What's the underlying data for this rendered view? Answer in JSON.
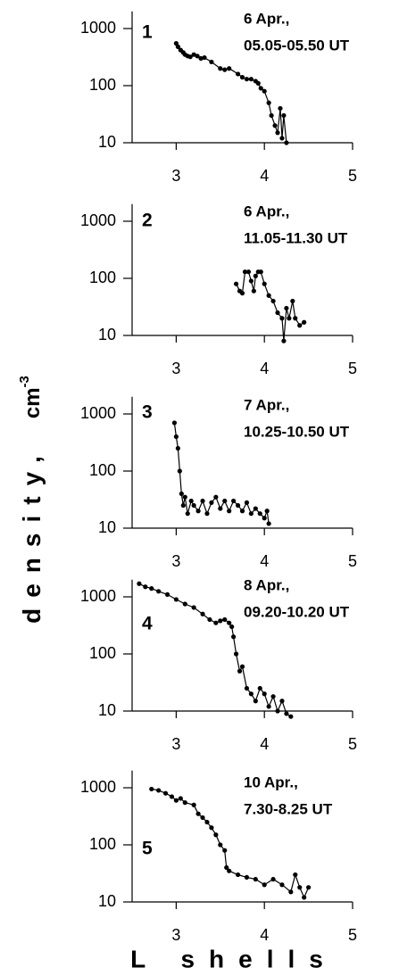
{
  "xlabel": "L shells",
  "ylabel": "density,",
  "yunit": "cm",
  "yunit_exp": "-3",
  "chart_data": [
    {
      "type": "line",
      "panel": "1",
      "annotation": [
        "6 Apr.,",
        "05.05-05.50 UT"
      ],
      "log_y": true,
      "color": "#000000",
      "xlim": [
        2.5,
        5
      ],
      "xticks": [
        3,
        4,
        5
      ],
      "ylim": [
        10,
        2000
      ],
      "yticks": [
        10,
        100,
        1000
      ],
      "x": [
        3.0,
        3.02,
        3.05,
        3.08,
        3.1,
        3.13,
        3.16,
        3.2,
        3.24,
        3.28,
        3.32,
        3.4,
        3.5,
        3.55,
        3.6,
        3.7,
        3.75,
        3.8,
        3.85,
        3.9,
        3.93,
        3.96,
        4.0,
        4.05,
        4.08,
        4.12,
        4.15,
        4.18,
        4.2,
        4.22,
        4.25
      ],
      "values": [
        550,
        480,
        420,
        380,
        350,
        330,
        320,
        350,
        330,
        300,
        310,
        260,
        200,
        190,
        200,
        160,
        140,
        130,
        130,
        120,
        110,
        90,
        80,
        50,
        30,
        20,
        15,
        40,
        12,
        30,
        10
      ]
    },
    {
      "type": "line",
      "panel": "2",
      "annotation": [
        "6 Apr.,",
        "11.05-11.30 UT"
      ],
      "log_y": true,
      "color": "#000000",
      "xlim": [
        2.5,
        5
      ],
      "xticks": [
        3,
        4,
        5
      ],
      "ylim": [
        10,
        2000
      ],
      "yticks": [
        10,
        100,
        1000
      ],
      "x": [
        3.68,
        3.72,
        3.75,
        3.78,
        3.82,
        3.85,
        3.88,
        3.9,
        3.93,
        3.96,
        4.0,
        4.05,
        4.1,
        4.15,
        4.2,
        4.22,
        4.25,
        4.28,
        4.32,
        4.35,
        4.4,
        4.45
      ],
      "values": [
        80,
        60,
        55,
        130,
        130,
        90,
        60,
        110,
        130,
        130,
        80,
        50,
        40,
        25,
        20,
        8,
        30,
        20,
        40,
        20,
        15,
        17
      ]
    },
    {
      "type": "line",
      "panel": "3",
      "annotation": [
        "7 Apr.,",
        "10.25-10.50 UT"
      ],
      "log_y": true,
      "color": "#000000",
      "xlim": [
        2.5,
        5
      ],
      "xticks": [
        3,
        4,
        5
      ],
      "ylim": [
        10,
        2000
      ],
      "yticks": [
        10,
        100,
        1000
      ],
      "x": [
        2.98,
        3.0,
        3.02,
        3.04,
        3.06,
        3.08,
        3.1,
        3.13,
        3.17,
        3.2,
        3.25,
        3.3,
        3.35,
        3.4,
        3.45,
        3.5,
        3.55,
        3.6,
        3.65,
        3.7,
        3.75,
        3.8,
        3.85,
        3.9,
        3.95,
        4.0,
        4.03,
        4.05
      ],
      "values": [
        700,
        400,
        250,
        100,
        40,
        25,
        35,
        18,
        30,
        25,
        20,
        30,
        18,
        28,
        35,
        22,
        30,
        20,
        30,
        25,
        20,
        28,
        18,
        22,
        18,
        15,
        20,
        12
      ]
    },
    {
      "type": "line",
      "panel": "4",
      "annotation": [
        "8 Apr.,",
        "09.20-10.20 UT"
      ],
      "log_y": true,
      "color": "#000000",
      "xlim": [
        2.5,
        5
      ],
      "xticks": [
        3,
        4,
        5
      ],
      "ylim": [
        10,
        2000
      ],
      "yticks": [
        10,
        100,
        1000
      ],
      "x": [
        2.58,
        2.65,
        2.72,
        2.8,
        2.9,
        3.0,
        3.1,
        3.2,
        3.3,
        3.38,
        3.45,
        3.5,
        3.55,
        3.6,
        3.63,
        3.65,
        3.68,
        3.72,
        3.75,
        3.8,
        3.85,
        3.9,
        3.95,
        4.0,
        4.05,
        4.1,
        4.15,
        4.2,
        4.25,
        4.3
      ],
      "values": [
        1700,
        1500,
        1400,
        1250,
        1100,
        900,
        750,
        650,
        500,
        400,
        350,
        380,
        400,
        350,
        300,
        200,
        100,
        50,
        60,
        25,
        20,
        15,
        25,
        20,
        12,
        18,
        10,
        15,
        9,
        8
      ]
    },
    {
      "type": "line",
      "panel": "5",
      "annotation": [
        "10 Apr.,",
        "7.30-8.25 UT"
      ],
      "log_y": true,
      "color": "#000000",
      "xlim": [
        2.5,
        5
      ],
      "xticks": [
        3,
        4,
        5
      ],
      "ylim": [
        10,
        2000
      ],
      "yticks": [
        10,
        100,
        1000
      ],
      "x": [
        2.72,
        2.8,
        2.88,
        2.95,
        3.0,
        3.05,
        3.1,
        3.2,
        3.25,
        3.3,
        3.35,
        3.4,
        3.45,
        3.5,
        3.55,
        3.57,
        3.6,
        3.7,
        3.8,
        3.9,
        4.0,
        4.1,
        4.2,
        4.3,
        4.35,
        4.4,
        4.45,
        4.5
      ],
      "values": [
        950,
        900,
        800,
        700,
        600,
        650,
        550,
        500,
        350,
        300,
        250,
        200,
        150,
        100,
        80,
        40,
        35,
        30,
        27,
        25,
        20,
        25,
        20,
        15,
        30,
        18,
        12,
        18
      ]
    }
  ]
}
